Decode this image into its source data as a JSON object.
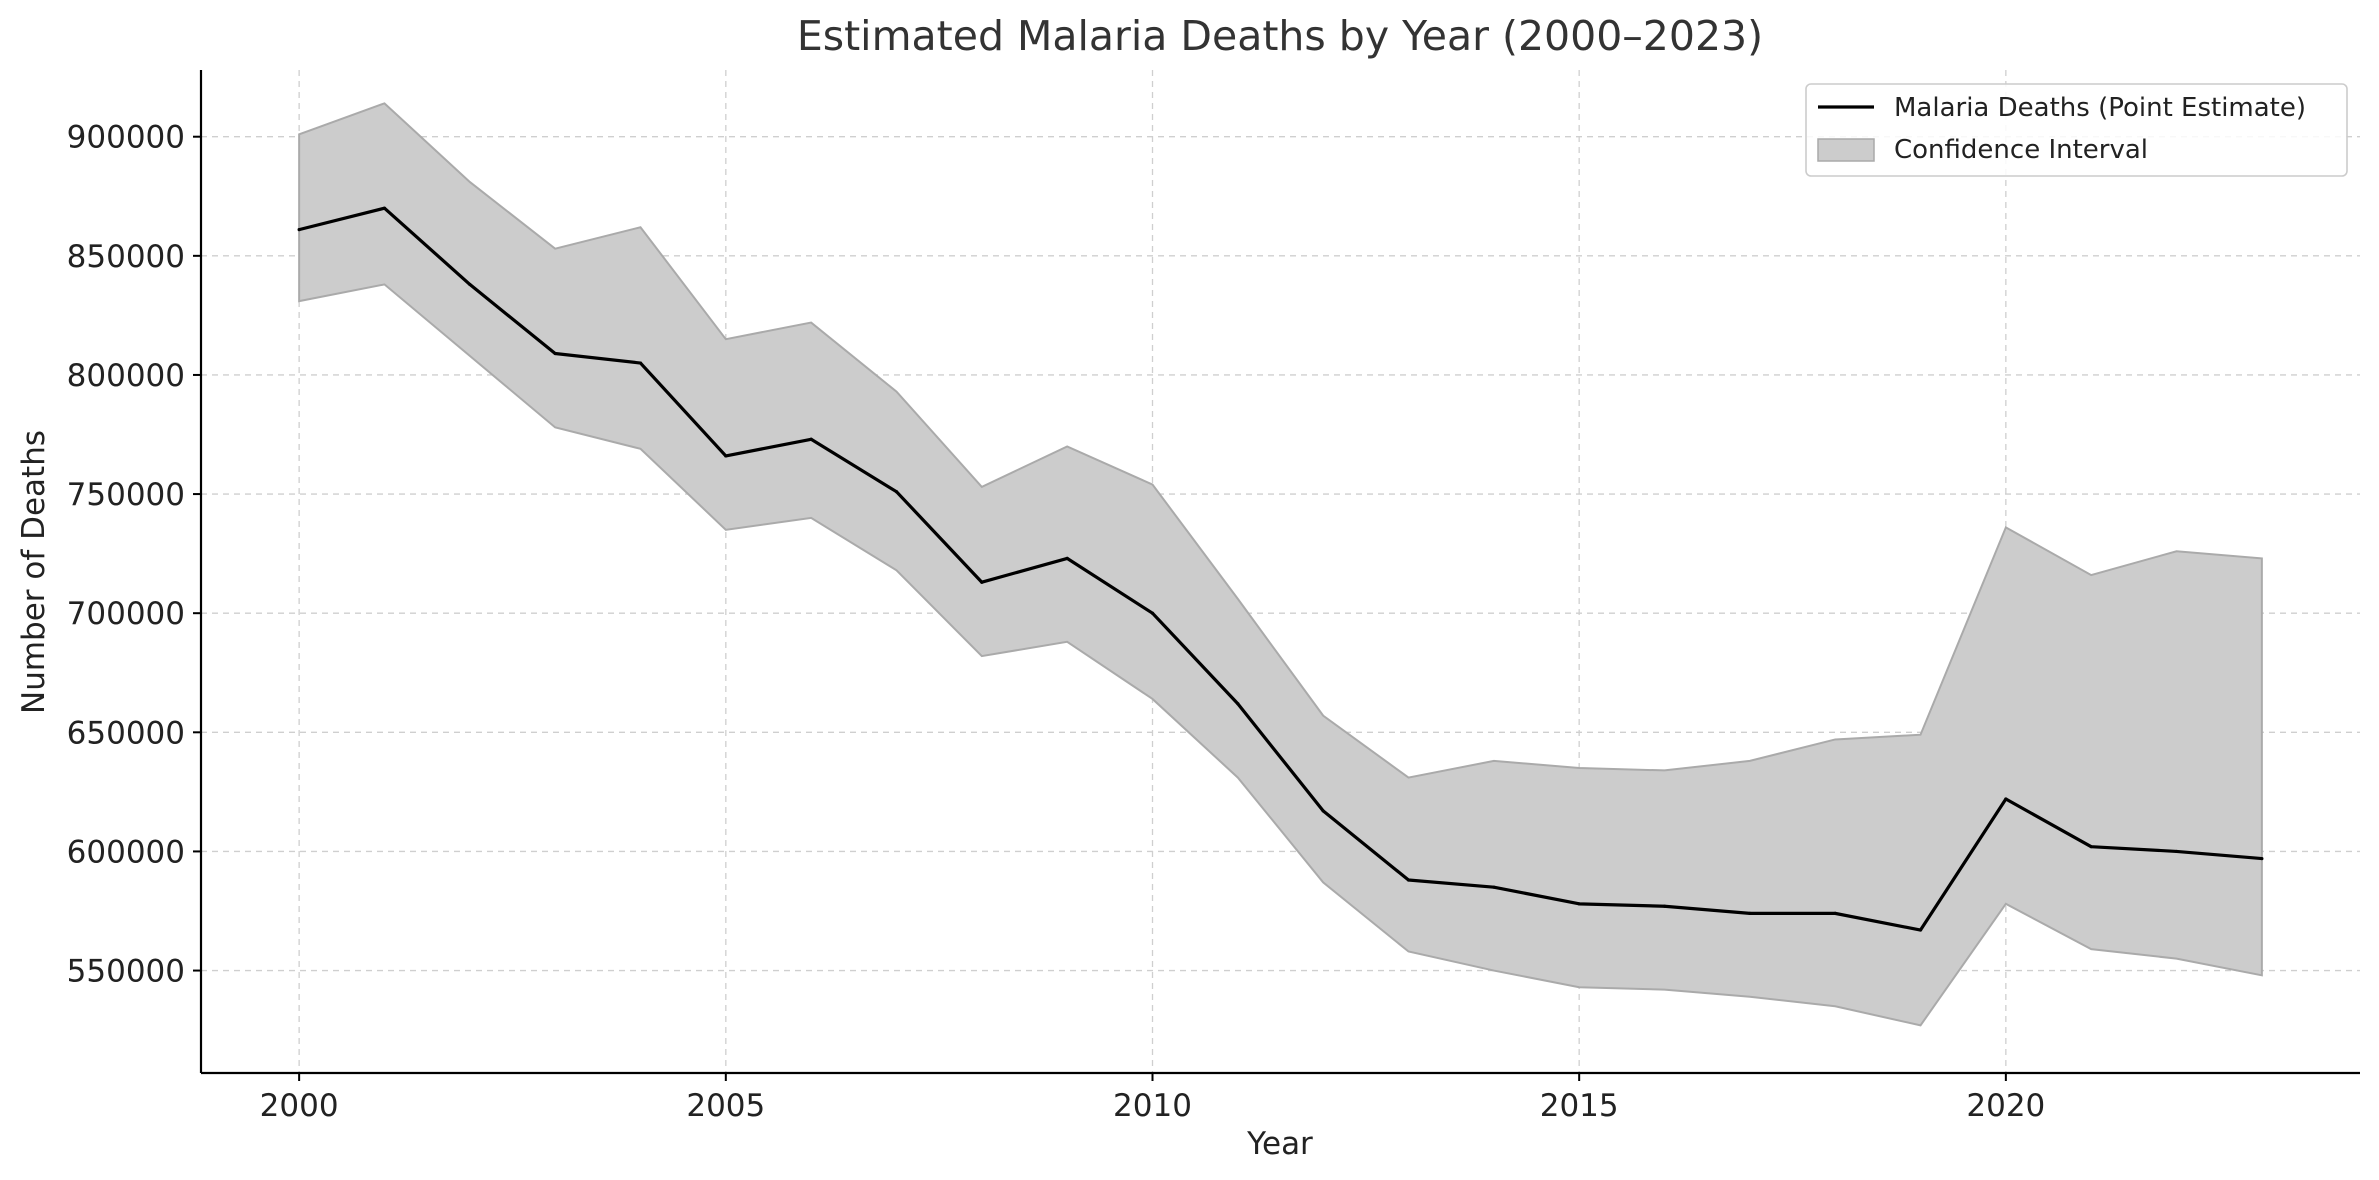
{
  "chart_data": {
    "type": "line",
    "title": "Estimated Malaria Deaths by Year (2000–2023)",
    "xlabel": "Year",
    "ylabel": "Number of Deaths",
    "xlim": [
      1998.85,
      2024.15
    ],
    "ylim": [
      507000,
      928000
    ],
    "x_ticks": [
      2000,
      2005,
      2010,
      2015,
      2020
    ],
    "y_ticks": [
      550000,
      600000,
      650000,
      700000,
      750000,
      800000,
      850000,
      900000
    ],
    "grid": true,
    "legend_position": "top-right",
    "x": [
      2000,
      2001,
      2002,
      2003,
      2004,
      2005,
      2006,
      2007,
      2008,
      2009,
      2010,
      2011,
      2012,
      2013,
      2014,
      2015,
      2016,
      2017,
      2018,
      2019,
      2020,
      2021,
      2022,
      2023
    ],
    "series": [
      {
        "name": "Malaria Deaths (Point Estimate)",
        "kind": "line",
        "color": "#000000",
        "values": [
          861000,
          870000,
          838000,
          809000,
          805000,
          766000,
          773000,
          751000,
          713000,
          723000,
          700000,
          662000,
          617000,
          588000,
          585000,
          578000,
          577000,
          574000,
          574000,
          567000,
          622000,
          602000,
          600000,
          597000
        ]
      },
      {
        "name": "Confidence Interval",
        "kind": "band",
        "color": "#cccccc",
        "upper": [
          901000,
          914000,
          881000,
          853000,
          862000,
          815000,
          822000,
          793000,
          753000,
          770000,
          754000,
          706000,
          657000,
          631000,
          638000,
          635000,
          634000,
          638000,
          647000,
          649000,
          736000,
          716000,
          726000,
          723000
        ],
        "lower": [
          831000,
          838000,
          808000,
          778000,
          769000,
          735000,
          740000,
          718000,
          682000,
          688000,
          664000,
          631000,
          587000,
          558000,
          550000,
          543000,
          542000,
          539000,
          535000,
          527000,
          578000,
          559000,
          555000,
          548000
        ]
      }
    ]
  }
}
